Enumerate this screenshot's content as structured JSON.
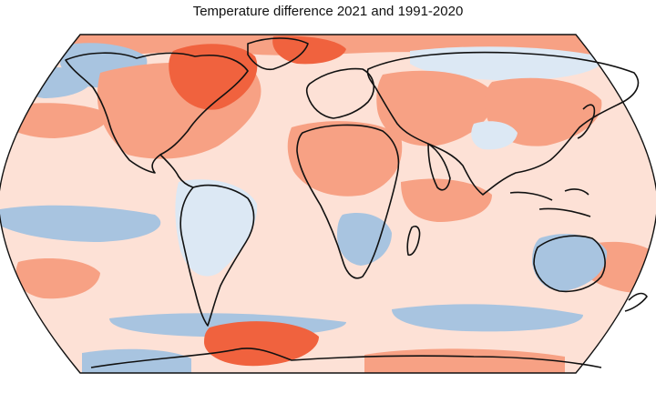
{
  "title": "Temperature difference 2021 and 1991-2020",
  "projection": "Robinson",
  "anomaly_palette": {
    "strong_warm": "#f0623e",
    "warm": "#f7a184",
    "slight_warm": "#fde1d6",
    "slight_cool": "#dce8f4",
    "cool": "#a8c4e0",
    "strong_cool": "#6f9cc7",
    "coastline": "#111111"
  },
  "regions": {
    "ocean_background": "slight_warm",
    "north_america_east": "warm",
    "canada_northeast": "strong_warm",
    "greenland_east": "strong_warm",
    "arctic_north": "warm",
    "alaska": "cool",
    "north_pacific_west": "cool",
    "central_asia": "warm",
    "mongolia_china": "warm",
    "siberia": "slight_cool",
    "north_africa": "warm",
    "southern_africa": "cool",
    "equatorial_pacific": "cool",
    "south_pacific_west": "warm",
    "southern_ocean": "strong_warm",
    "australia": "cool"
  }
}
